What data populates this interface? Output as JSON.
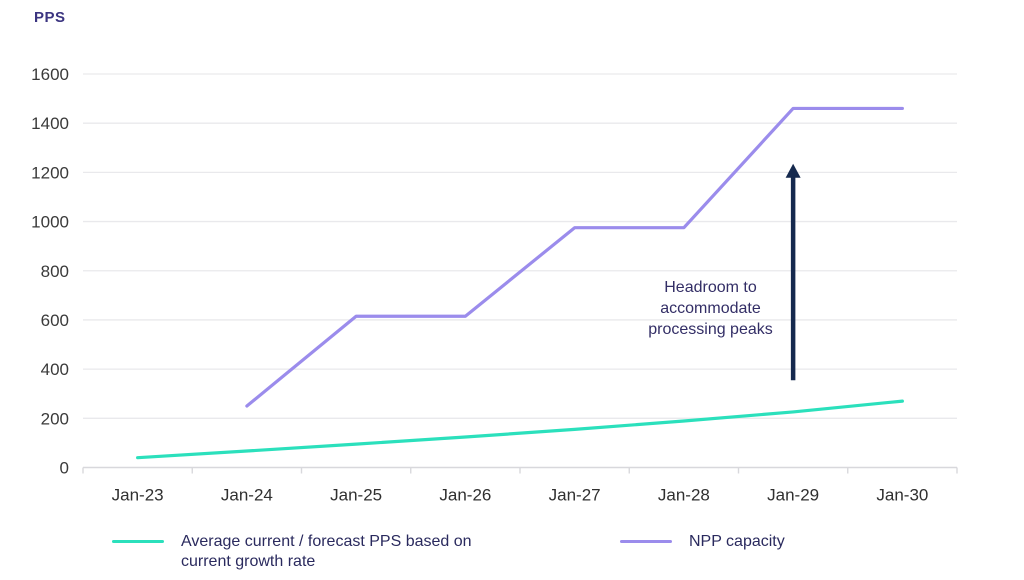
{
  "chart_data": {
    "type": "line",
    "title": "",
    "xlabel": "",
    "ylabel": "PPS",
    "categories": [
      "Jan-23",
      "Jan-24",
      "Jan-25",
      "Jan-26",
      "Jan-27",
      "Jan-28",
      "Jan-29",
      "Jan-30"
    ],
    "y_ticks": [
      0,
      200,
      400,
      600,
      800,
      1000,
      1200,
      1400,
      1600
    ],
    "ylim": [
      0,
      1600
    ],
    "grid": "horizontal",
    "legend_position": "bottom",
    "series": [
      {
        "name": "Average current / forecast PPS based on current growth rate",
        "color": "#2be0bc",
        "values": [
          40,
          67,
          95,
          124,
          155,
          189,
          226,
          270
        ]
      },
      {
        "name": "NPP capacity",
        "color": "#9b8cec",
        "values": [
          null,
          250,
          615,
          615,
          975,
          975,
          1460,
          1460
        ]
      }
    ],
    "annotation": {
      "text": "Headroom to\naccommodate\nprocessing peaks",
      "color": "#332e66",
      "arrow": {
        "color": "#15294e",
        "x_category": "Jan-29",
        "from_value": 355,
        "to_value": 1235
      }
    },
    "colors": {
      "grid": "#e9e9ec",
      "axis_line": "#d8d8dc",
      "tick_text": "#3a3a3a"
    }
  }
}
